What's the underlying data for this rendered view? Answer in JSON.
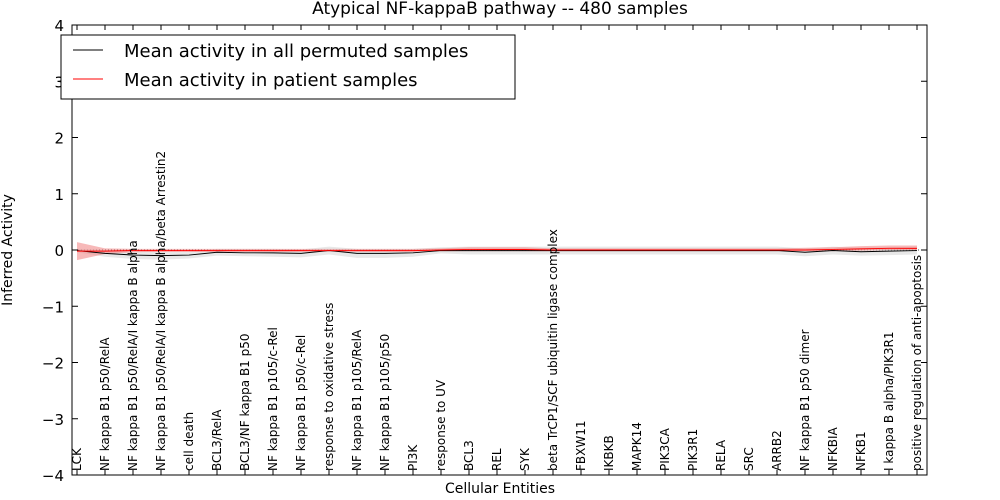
{
  "chart_data": {
    "type": "line",
    "title": "Atypical NF-kappaB pathway -- 480 samples",
    "xlabel": "Cellular Entities",
    "ylabel": "Inferred Activity",
    "ylim": [
      -4,
      4
    ],
    "yticks": [
      -4,
      -3,
      -2,
      -1,
      0,
      1,
      2,
      3,
      4
    ],
    "ytick_labels": [
      "−4",
      "−3",
      "−2",
      "−1",
      "0",
      "1",
      "2",
      "3",
      "4"
    ],
    "grid": false,
    "legend_position": "top-left",
    "categories": [
      "LCK",
      "NF kappa B1 p50/RelA",
      "NF kappa B1 p50/RelA/I kappa B alpha",
      "NF kappa B1 p50/RelA/I kappa B alpha/beta Arrestin2",
      "cell death",
      "BCL3/RelA",
      "BCL3/NF kappa B1 p50",
      "NF kappa B1 p105/c-Rel",
      "NF kappa B1 p50/c-Rel",
      "response to oxidative stress",
      "NF kappa B1 p105/RelA",
      "NF kappa B1 p105/p50",
      "PI3K",
      "response to UV",
      "BCL3",
      "REL",
      "SYK",
      "beta TrCP1/SCF ubiquitin ligase complex",
      "FBXW11",
      "IKBKB",
      "MAPK14",
      "PIK3CA",
      "PIK3R1",
      "RELA",
      "SRC",
      "ARRB2",
      "NF kappa B1 p50 dimer",
      "NFKBIA",
      "NFKB1",
      "I kappa B alpha/PIK3R1",
      "positive regulation of anti-apoptosis"
    ],
    "series": [
      {
        "name": "Mean activity in all permuted samples",
        "color": "#000000",
        "band_color": "#d9d9d9",
        "values": [
          -0.01,
          -0.06,
          -0.09,
          -0.1,
          -0.09,
          -0.04,
          -0.05,
          -0.05,
          -0.06,
          -0.01,
          -0.06,
          -0.06,
          -0.05,
          -0.01,
          -0.01,
          -0.01,
          -0.01,
          -0.01,
          -0.01,
          -0.01,
          -0.01,
          -0.01,
          -0.01,
          -0.01,
          -0.01,
          -0.01,
          -0.04,
          -0.01,
          -0.03,
          -0.02,
          -0.01
        ],
        "lower": [
          -0.04,
          -0.12,
          -0.16,
          -0.17,
          -0.15,
          -0.1,
          -0.11,
          -0.12,
          -0.13,
          -0.08,
          -0.14,
          -0.14,
          -0.12,
          -0.06,
          -0.08,
          -0.08,
          -0.08,
          -0.08,
          -0.08,
          -0.08,
          -0.08,
          -0.08,
          -0.08,
          -0.08,
          -0.08,
          -0.08,
          -0.11,
          -0.08,
          -0.1,
          -0.09,
          -0.08
        ],
        "upper": [
          0.02,
          0.0,
          -0.02,
          -0.03,
          -0.03,
          0.02,
          0.02,
          0.02,
          0.01,
          0.06,
          0.02,
          0.02,
          0.02,
          0.05,
          0.06,
          0.06,
          0.06,
          0.06,
          0.06,
          0.06,
          0.06,
          0.06,
          0.06,
          0.06,
          0.06,
          0.06,
          0.03,
          0.06,
          0.04,
          0.05,
          0.06
        ]
      },
      {
        "name": "Mean activity in patient samples",
        "color": "#ff0000",
        "band_color": "#f08080",
        "values": [
          -0.02,
          -0.02,
          -0.01,
          -0.01,
          -0.01,
          -0.01,
          -0.01,
          -0.01,
          -0.01,
          -0.01,
          -0.01,
          -0.01,
          -0.01,
          0.0,
          0.01,
          0.01,
          0.01,
          0.0,
          0.0,
          0.0,
          0.0,
          0.0,
          0.0,
          0.0,
          0.0,
          0.0,
          0.0,
          0.01,
          0.02,
          0.03,
          0.03
        ],
        "lower": [
          -0.18,
          -0.07,
          -0.04,
          -0.03,
          -0.03,
          -0.03,
          -0.03,
          -0.03,
          -0.03,
          -0.02,
          -0.03,
          -0.03,
          -0.03,
          -0.02,
          -0.02,
          -0.02,
          -0.02,
          -0.02,
          -0.02,
          -0.02,
          -0.02,
          -0.02,
          -0.02,
          -0.02,
          -0.02,
          -0.02,
          -0.02,
          -0.02,
          -0.01,
          0.0,
          0.0
        ],
        "upper": [
          0.14,
          0.03,
          0.02,
          0.02,
          0.02,
          0.02,
          0.02,
          0.02,
          0.02,
          0.02,
          0.02,
          0.02,
          0.02,
          0.03,
          0.05,
          0.05,
          0.05,
          0.03,
          0.03,
          0.03,
          0.03,
          0.03,
          0.03,
          0.03,
          0.03,
          0.03,
          0.04,
          0.05,
          0.07,
          0.08,
          0.08
        ]
      }
    ]
  }
}
